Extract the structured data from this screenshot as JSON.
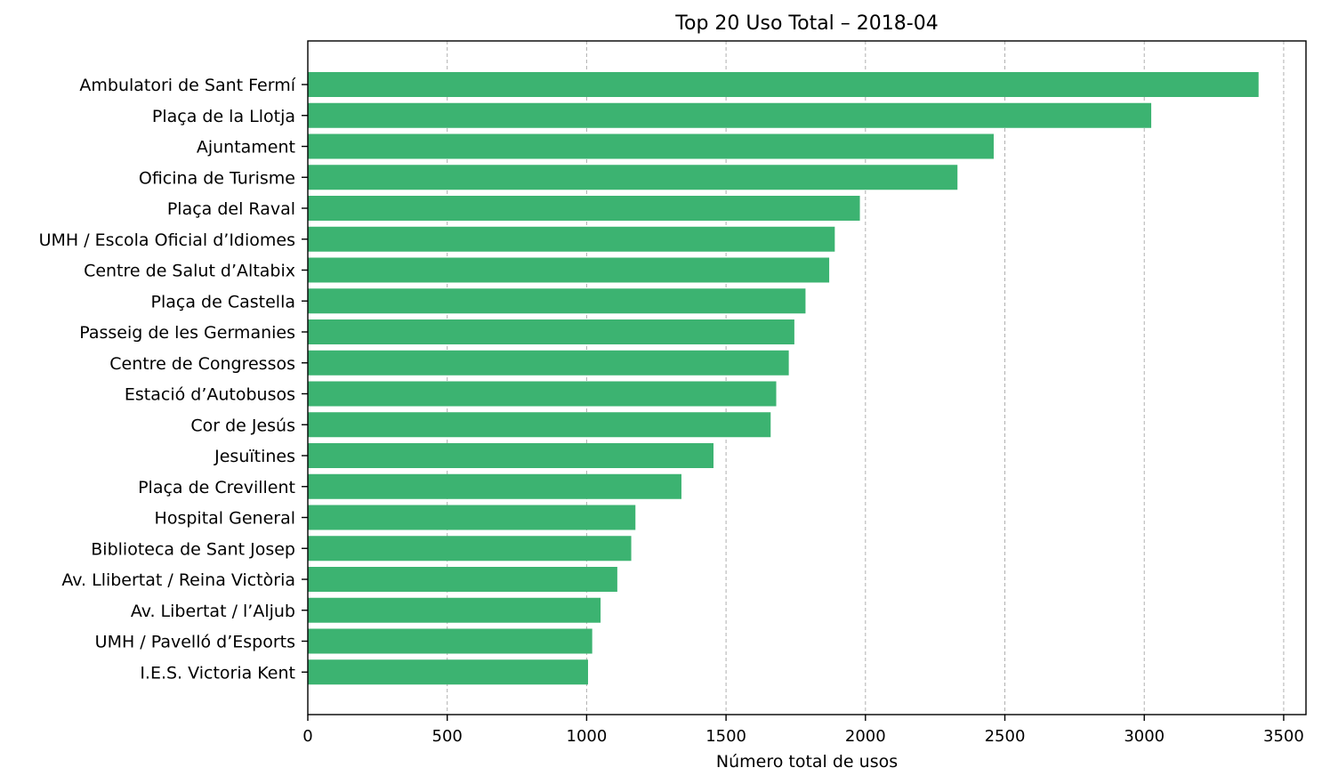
{
  "chart_data": {
    "type": "bar",
    "orientation": "horizontal",
    "title": "Top 20 Uso Total – 2018-04",
    "xlabel": "Número total de usos",
    "ylabel": "",
    "xlim": [
      0,
      3580
    ],
    "xticks": [
      0,
      500,
      1000,
      1500,
      2000,
      2500,
      3000,
      3500
    ],
    "grid": "x-dashed",
    "color": "#3cb371",
    "categories": [
      "Ambulatori de Sant Fermí",
      "Plaça de la Llotja",
      "Ajuntament",
      "Oficina de Turisme",
      "Plaça del Raval",
      "UMH / Escola Oficial d’Idiomes",
      "Centre de Salut d’Altabix",
      "Plaça de Castella",
      "Passeig de les Germanies",
      "Centre de Congressos",
      "Estació d’Autobusos",
      "Cor de Jesús",
      "Jesuïtines",
      "Plaça de Crevillent",
      "Hospital General",
      "Biblioteca de Sant Josep",
      "Av. Llibertat / Reina Victòria",
      "Av. Libertat / l’Aljub",
      "UMH / Pavelló d’Esports",
      "I.E.S. Victoria Kent"
    ],
    "values": [
      3410,
      3025,
      2460,
      2330,
      1980,
      1890,
      1870,
      1785,
      1745,
      1725,
      1680,
      1660,
      1455,
      1340,
      1175,
      1160,
      1110,
      1050,
      1020,
      1005
    ]
  }
}
